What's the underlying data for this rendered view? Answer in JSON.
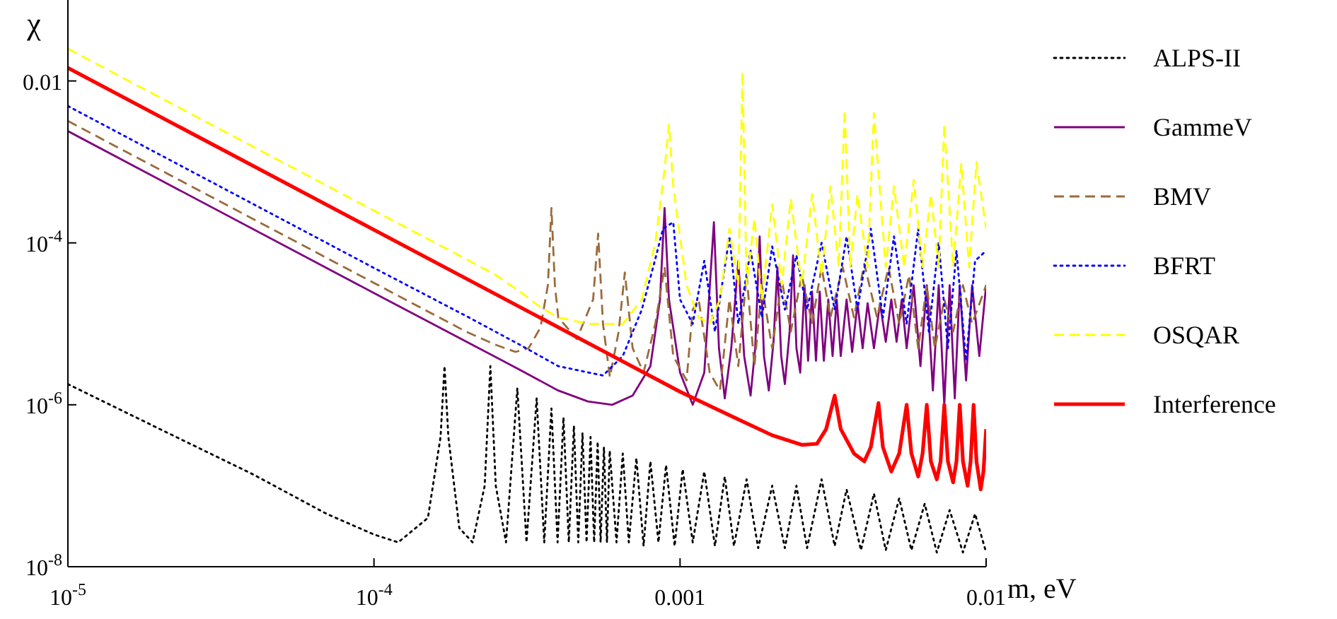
{
  "chart_data": {
    "type": "line",
    "xlabel": "m, eV",
    "ylabel": "χ",
    "log": "xy",
    "xlim": [
      1e-05,
      0.01
    ],
    "ylim": [
      1e-08,
      0.1
    ],
    "xticks": [
      {
        "value": 1e-05,
        "label": "10$^{-5}$"
      },
      {
        "value": 0.0001,
        "label": "10$^{-4}$"
      },
      0.001,
      0.01
    ],
    "yticks": [
      {
        "value": 1e-08,
        "label": "10$^{-8}$"
      },
      {
        "value": 1e-06,
        "label": "10$^{-6}$"
      },
      {
        "value": 0.0001,
        "label": "10$^{-4}$"
      },
      0.01
    ],
    "legend": "right",
    "series": [
      {
        "name": "ALPS-II",
        "color": "#000000",
        "line_style": "dotted",
        "x": [
          1e-05,
          2e-05,
          4e-05,
          7e-05,
          0.0001,
          0.00012,
          0.00015,
          0.000165,
          0.00017,
          0.000175,
          0.00019,
          0.00021,
          0.00023,
          0.00024,
          0.00025,
          0.00027,
          0.000294,
          0.000315,
          0.00034,
          0.00036,
          0.00038,
          0.000398,
          0.000416,
          0.000433,
          0.00045,
          0.000465,
          0.00048,
          0.000495,
          0.00051,
          0.000524,
          0.000538,
          0.00055,
          0.000564,
          0.000577,
          0.000589,
          0.00062,
          0.00065,
          0.00068,
          0.00072,
          0.00076,
          0.0008,
          0.00085,
          0.0009,
          0.00096,
          0.00102,
          0.0011,
          0.0012,
          0.0013,
          0.0014,
          0.0015,
          0.00165,
          0.0018,
          0.002,
          0.0022,
          0.0024,
          0.0026,
          0.0029,
          0.0032,
          0.0035,
          0.0039,
          0.0043,
          0.0047,
          0.0052,
          0.0057,
          0.0063,
          0.0069,
          0.0076,
          0.0084,
          0.0092,
          0.01
        ],
        "values": [
          1.8e-06,
          5e-07,
          1.4e-07,
          4.5e-08,
          2.5e-08,
          2e-08,
          4e-08,
          4e-07,
          3e-06,
          4e-07,
          3e-08,
          2e-08,
          1e-07,
          3e-06,
          1e-07,
          2e-08,
          1.6e-06,
          2e-08,
          1.2e-06,
          2e-08,
          9e-07,
          2e-08,
          7e-07,
          2e-08,
          5.5e-07,
          2e-08,
          4.5e-07,
          2e-08,
          4e-07,
          2e-08,
          3.5e-07,
          2e-08,
          3e-07,
          2e-08,
          2.7e-07,
          2e-08,
          2.5e-07,
          2e-08,
          2.2e-07,
          1.8e-08,
          2e-07,
          2e-08,
          1.8e-07,
          1.8e-08,
          1.6e-07,
          2e-08,
          1.5e-07,
          1.8e-08,
          1.3e-07,
          1.8e-08,
          1.2e-07,
          1.7e-08,
          1e-07,
          1.7e-08,
          1e-07,
          1.7e-08,
          1.2e-07,
          1.8e-08,
          9e-08,
          1.6e-08,
          8e-08,
          1.6e-08,
          7e-08,
          1.6e-08,
          6e-08,
          1.5e-08,
          5e-08,
          1.5e-08,
          4.5e-08,
          1.5e-08
        ]
      },
      {
        "name": "GammeV",
        "color": "#800080",
        "line_style": "solid",
        "x": [
          1e-05,
          0.0001,
          0.0003,
          0.0004,
          0.0005,
          0.0006,
          0.0007,
          0.0008,
          0.00086,
          0.00089,
          0.00092,
          0.001,
          0.0011,
          0.0012,
          0.00129,
          0.00134,
          0.0014,
          0.00147,
          0.00155,
          0.00162,
          0.0017,
          0.00176,
          0.00182,
          0.00188,
          0.00195,
          0.00202,
          0.00208,
          0.00214,
          0.0022,
          0.00228,
          0.00234,
          0.0024,
          0.00247,
          0.00255,
          0.00262,
          0.0027,
          0.00278,
          0.00286,
          0.00295,
          0.00305,
          0.00315,
          0.00325,
          0.00335,
          0.0035,
          0.00365,
          0.0038,
          0.00395,
          0.0041,
          0.0043,
          0.0045,
          0.0047,
          0.0049,
          0.0051,
          0.0053,
          0.0055,
          0.0058,
          0.0061,
          0.0064,
          0.0067,
          0.007,
          0.0073,
          0.0076,
          0.0079,
          0.0082,
          0.0086,
          0.009,
          0.0095,
          0.01
        ],
        "values": [
          0.0024,
          2.4e-05,
          2.7e-06,
          1.5e-06,
          1.1e-06,
          1e-06,
          1.3e-06,
          3e-06,
          2e-05,
          0.00027,
          2e-05,
          2.5e-06,
          1e-06,
          2.5e-06,
          0.00018,
          5e-06,
          1.2e-06,
          5e-06,
          6e-05,
          4e-06,
          1.3e-06,
          5e-06,
          0.00012,
          4e-06,
          1.5e-06,
          6e-06,
          5e-05,
          4e-06,
          1.8e-06,
          8e-06,
          7e-05,
          5e-06,
          2.5e-06,
          3e-05,
          3.5e-06,
          2.5e-05,
          3.5e-06,
          2.5e-05,
          3.5e-06,
          2e-05,
          4e-06,
          2e-05,
          4e-06,
          2e-05,
          4.5e-06,
          1.8e-05,
          5e-06,
          1.8e-05,
          5e-06,
          1.8e-05,
          6e-06,
          2e-05,
          6e-06,
          2e-05,
          5e-06,
          3e-05,
          3e-06,
          3e-05,
          1.5e-06,
          3e-05,
          1e-06,
          3e-05,
          1.2e-06,
          3e-05,
          2e-06,
          3e-05,
          4e-06,
          3e-05
        ]
      },
      {
        "name": "BMV",
        "color": "#9b6b3b",
        "line_style": "dashed",
        "x": [
          1e-05,
          0.0001,
          0.0002,
          0.00025,
          0.00029,
          0.00032,
          0.00035,
          0.00037,
          0.00038,
          0.00039,
          0.0004,
          0.00046,
          0.00052,
          0.00054,
          0.00056,
          0.00059,
          0.00063,
          0.00066,
          0.0007,
          0.00076,
          0.00083,
          0.00089,
          0.00095,
          0.00105,
          0.0011,
          0.00115,
          0.00125,
          0.00135,
          0.00145,
          0.00155,
          0.00165,
          0.00175,
          0.00185,
          0.002,
          0.00215,
          0.0023,
          0.0025,
          0.0027,
          0.0029,
          0.0031,
          0.0034,
          0.0037,
          0.004,
          0.0044,
          0.0048,
          0.0052,
          0.0056,
          0.006,
          0.0064,
          0.0068,
          0.0073,
          0.0078,
          0.0084,
          0.009,
          0.01
        ],
        "values": [
          0.0032,
          3.2e-05,
          8e-06,
          5.5e-06,
          4.5e-06,
          5e-06,
          9e-06,
          3e-05,
          0.00027,
          3e-05,
          1.2e-05,
          6.5e-06,
          2e-05,
          0.00013,
          1e-05,
          2.2e-06,
          8e-06,
          4.3e-05,
          5e-06,
          2.5e-06,
          1e-05,
          5e-05,
          4e-06,
          2e-06,
          1.5e-05,
          2e-05,
          2.5e-06,
          1.5e-06,
          2e-05,
          3e-06,
          4e-05,
          3e-06,
          3e-05,
          5e-06,
          3.5e-05,
          8e-06,
          4e-05,
          1e-05,
          5e-05,
          1.2e-05,
          5e-05,
          1.2e-05,
          5.5e-05,
          1.2e-05,
          5e-05,
          1e-05,
          4e-05,
          5e-06,
          3e-05,
          5e-06,
          2e-05,
          8e-06,
          3e-05,
          1e-05,
          3e-05
        ]
      },
      {
        "name": "BFRT",
        "color": "#0000ff",
        "line_style": "dotted",
        "x": [
          1e-05,
          0.0001,
          0.0002,
          0.0003,
          0.0004,
          0.00056,
          0.00065,
          0.00075,
          0.00083,
          0.00088,
          0.00095,
          0.001,
          0.0011,
          0.0012,
          0.0013,
          0.00145,
          0.00155,
          0.0017,
          0.00185,
          0.002,
          0.0022,
          0.0024,
          0.0026,
          0.0029,
          0.0032,
          0.0035,
          0.0038,
          0.0042,
          0.0046,
          0.005,
          0.0055,
          0.006,
          0.0065,
          0.007,
          0.0075,
          0.008,
          0.0086,
          0.0092,
          0.01
        ],
        "values": [
          0.0049,
          4.9e-05,
          1.25e-05,
          5.5e-06,
          3e-06,
          2.3e-06,
          4e-06,
          1.5e-05,
          6.3e-05,
          0.00015,
          0.00018,
          2e-05,
          1e-05,
          6e-05,
          8e-06,
          0.00012,
          1e-05,
          8e-05,
          1.2e-05,
          9e-05,
          1.5e-05,
          7e-05,
          1.5e-05,
          0.0001,
          1.5e-05,
          0.00012,
          1.5e-05,
          0.00015,
          1.2e-05,
          0.00012,
          1e-05,
          0.00015,
          8e-06,
          0.0001,
          5e-06,
          8e-05,
          3.5e-06,
          6e-05,
          8e-05
        ]
      },
      {
        "name": "OSQAR",
        "color": "#ffff00",
        "line_style": "dashed",
        "x": [
          1e-05,
          0.0001,
          0.0002,
          0.00025,
          0.0003,
          0.00035,
          0.0004,
          0.0005,
          0.00065,
          0.00075,
          0.00083,
          0.00089,
          0.00092,
          0.00095,
          0.00105,
          0.00115,
          0.00125,
          0.00135,
          0.00145,
          0.00155,
          0.0016,
          0.00165,
          0.00175,
          0.00185,
          0.002,
          0.00215,
          0.0023,
          0.0025,
          0.0027,
          0.0029,
          0.0031,
          0.0033,
          0.00345,
          0.0036,
          0.0038,
          0.0041,
          0.0043,
          0.0047,
          0.005,
          0.0054,
          0.0058,
          0.0062,
          0.0066,
          0.007,
          0.0073,
          0.0078,
          0.0083,
          0.0088,
          0.0093,
          0.01
        ],
        "values": [
          0.025,
          0.00025,
          6.3e-05,
          4e-05,
          2.5e-05,
          1.6e-05,
          1.2e-05,
          1e-05,
          1e-05,
          2e-05,
          0.0001,
          0.0008,
          0.0029,
          0.0005,
          3e-05,
          1.2e-05,
          1e-05,
          2e-05,
          0.00015,
          3e-05,
          0.013,
          3e-05,
          0.0002,
          2e-05,
          0.0003,
          3e-05,
          0.00035,
          3e-05,
          0.0004,
          4e-05,
          0.0005,
          5e-05,
          0.0044,
          5e-05,
          0.0004,
          5e-05,
          0.004,
          5e-05,
          0.0005,
          5e-05,
          0.0006,
          5e-05,
          0.0004,
          5e-05,
          0.0029,
          5e-05,
          0.00095,
          5e-05,
          0.001,
          0.00015
        ]
      },
      {
        "name": "Interference",
        "color": "#ff0000",
        "line_style": "solid",
        "x": [
          1e-05,
          0.0001,
          0.001,
          0.0015,
          0.002,
          0.0025,
          0.0028,
          0.003,
          0.0032,
          0.00335,
          0.0037,
          0.004,
          0.0042,
          0.00445,
          0.0046,
          0.0049,
          0.0052,
          0.0055,
          0.0057,
          0.006,
          0.0062,
          0.0064,
          0.0066,
          0.0069,
          0.0071,
          0.0073,
          0.0075,
          0.0078,
          0.008,
          0.0082,
          0.0084,
          0.0087,
          0.0089,
          0.0091,
          0.0093,
          0.0096,
          0.0098,
          0.01
        ],
        "values": [
          0.0145,
          0.000145,
          1.45e-06,
          7e-07,
          4.2e-07,
          3.2e-07,
          3.3e-07,
          5e-07,
          1.3e-06,
          5e-07,
          2.5e-07,
          2e-07,
          3e-07,
          1.05e-06,
          3e-07,
          1.5e-07,
          2.5e-07,
          1e-06,
          2.5e-07,
          1.3e-07,
          2.5e-07,
          1e-06,
          2e-07,
          1.2e-07,
          2e-07,
          1e-06,
          2e-07,
          1.1e-07,
          2e-07,
          1e-06,
          2e-07,
          1e-07,
          2e-07,
          1e-06,
          2e-07,
          9e-08,
          1.5e-07,
          5e-07
        ]
      }
    ]
  }
}
